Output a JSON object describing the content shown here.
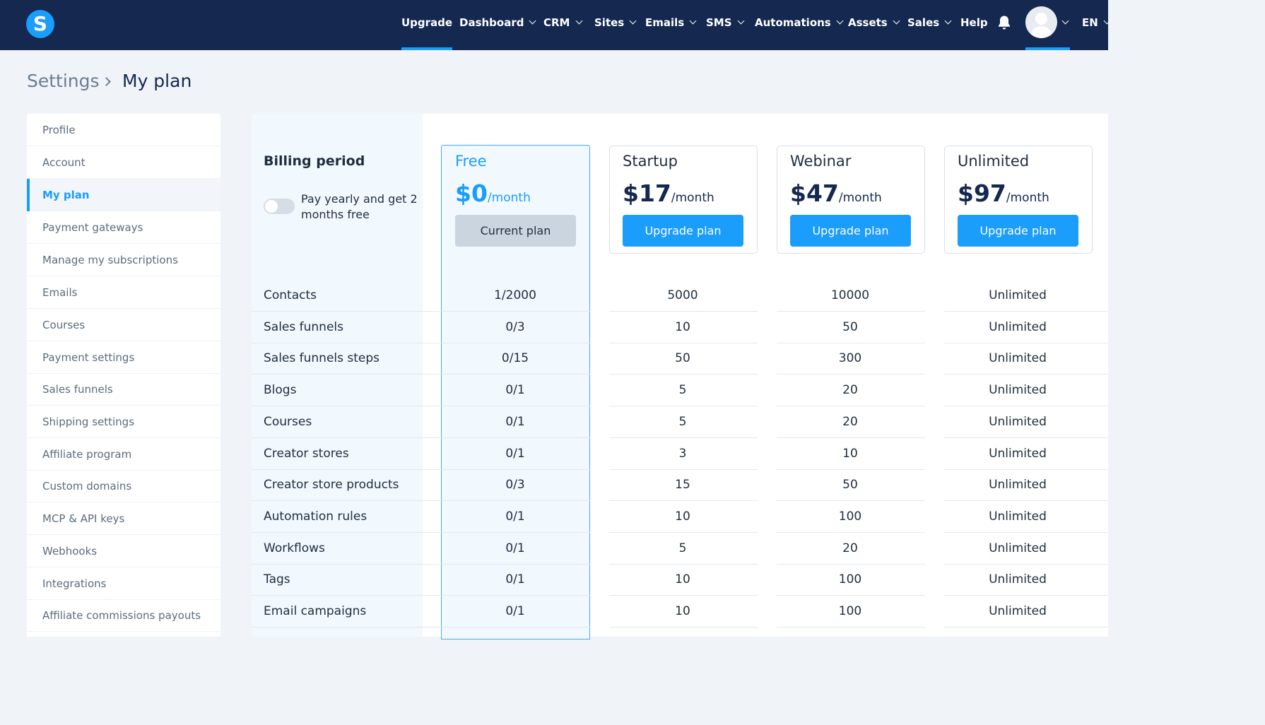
{
  "nav": {
    "logo_letter": "S",
    "items": [
      {
        "label": "Upgrade"
      },
      {
        "label": "Dashboard"
      },
      {
        "label": "CRM"
      },
      {
        "label": "Sites"
      },
      {
        "label": "Emails"
      },
      {
        "label": "SMS"
      },
      {
        "label": "Automations"
      },
      {
        "label": "Assets"
      },
      {
        "label": "Sales"
      },
      {
        "label": "Help"
      }
    ],
    "language": "EN"
  },
  "breadcrumb": {
    "parent": "Settings",
    "current": "My plan"
  },
  "sidebar": {
    "items": [
      {
        "label": "Profile"
      },
      {
        "label": "Account"
      },
      {
        "label": "My plan"
      },
      {
        "label": "Payment gateways"
      },
      {
        "label": "Manage my subscriptions"
      },
      {
        "label": "Emails"
      },
      {
        "label": "Courses"
      },
      {
        "label": "Payment settings"
      },
      {
        "label": "Sales funnels"
      },
      {
        "label": "Shipping settings"
      },
      {
        "label": "Affiliate program"
      },
      {
        "label": "Custom domains"
      },
      {
        "label": "MCP & API keys"
      },
      {
        "label": "Webhooks"
      },
      {
        "label": "Integrations"
      },
      {
        "label": "Affiliate commissions payouts"
      }
    ]
  },
  "billing": {
    "title": "Billing period",
    "toggle_label": "Pay yearly and get 2 months free"
  },
  "plans": [
    {
      "name": "Free",
      "price": "$0",
      "per": "/month",
      "button": "Current plan"
    },
    {
      "name": "Startup",
      "price": "$17",
      "per": "/month",
      "button": "Upgrade plan"
    },
    {
      "name": "Webinar",
      "price": "$47",
      "per": "/month",
      "button": "Upgrade plan"
    },
    {
      "name": "Unlimited",
      "price": "$97",
      "per": "/month",
      "button": "Upgrade plan"
    }
  ],
  "features": [
    {
      "label": "Contacts",
      "values": [
        "1/2000",
        "5000",
        "10000",
        "Unlimited"
      ]
    },
    {
      "label": "Sales funnels",
      "values": [
        "0/3",
        "10",
        "50",
        "Unlimited"
      ]
    },
    {
      "label": "Sales funnels steps",
      "values": [
        "0/15",
        "50",
        "300",
        "Unlimited"
      ]
    },
    {
      "label": "Blogs",
      "values": [
        "0/1",
        "5",
        "20",
        "Unlimited"
      ]
    },
    {
      "label": "Courses",
      "values": [
        "0/1",
        "5",
        "20",
        "Unlimited"
      ]
    },
    {
      "label": "Creator stores",
      "values": [
        "0/1",
        "3",
        "10",
        "Unlimited"
      ]
    },
    {
      "label": "Creator store products",
      "values": [
        "0/3",
        "15",
        "50",
        "Unlimited"
      ]
    },
    {
      "label": "Automation rules",
      "values": [
        "0/1",
        "10",
        "100",
        "Unlimited"
      ]
    },
    {
      "label": "Workflows",
      "values": [
        "0/1",
        "5",
        "20",
        "Unlimited"
      ]
    },
    {
      "label": "Tags",
      "values": [
        "0/1",
        "10",
        "100",
        "Unlimited"
      ]
    },
    {
      "label": "Email campaigns",
      "values": [
        "0/1",
        "10",
        "100",
        "Unlimited"
      ]
    }
  ]
}
